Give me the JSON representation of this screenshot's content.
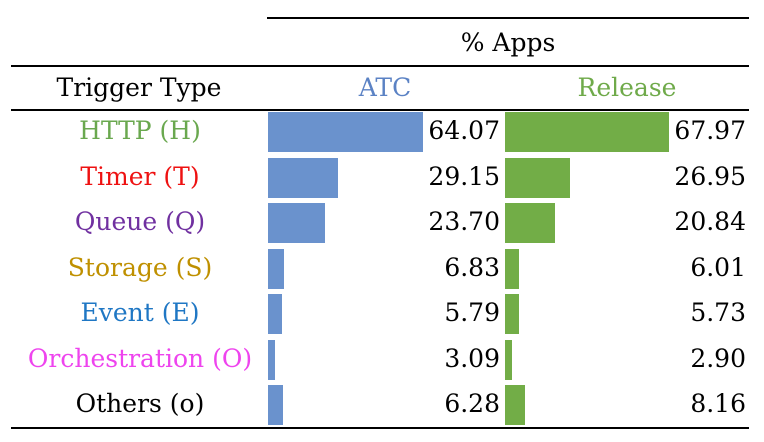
{
  "chart_data": {
    "type": "table",
    "title": "% Apps",
    "row_header": "Trigger Type",
    "series": [
      {
        "name": "ATC",
        "color": "#6a92cd"
      },
      {
        "name": "Release",
        "color": "#72ad47"
      }
    ],
    "header_colors": {
      "ATC": "#5b82c4",
      "Release": "#6faa4a"
    },
    "rows": [
      {
        "label": "HTTP (H)",
        "color": "#6aa84f",
        "atc": "64.07",
        "release": "67.97"
      },
      {
        "label": "Timer (T)",
        "color": "#ee1111",
        "atc": "29.15",
        "release": "26.95"
      },
      {
        "label": "Queue (Q)",
        "color": "#7030a0",
        "atc": "23.70",
        "release": "20.84"
      },
      {
        "label": "Storage (S)",
        "color": "#bf9000",
        "atc": "6.83",
        "release": "6.01"
      },
      {
        "label": "Event (E)",
        "color": "#1f77c4",
        "atc": "5.79",
        "release": "5.73"
      },
      {
        "label": "Orchestration (O)",
        "color": "#ee44ee",
        "atc": "3.09",
        "release": "2.90"
      },
      {
        "label": "Others (o)",
        "color": "#000000",
        "atc": "6.28",
        "release": "8.16"
      }
    ],
    "bar_max": 68
  }
}
